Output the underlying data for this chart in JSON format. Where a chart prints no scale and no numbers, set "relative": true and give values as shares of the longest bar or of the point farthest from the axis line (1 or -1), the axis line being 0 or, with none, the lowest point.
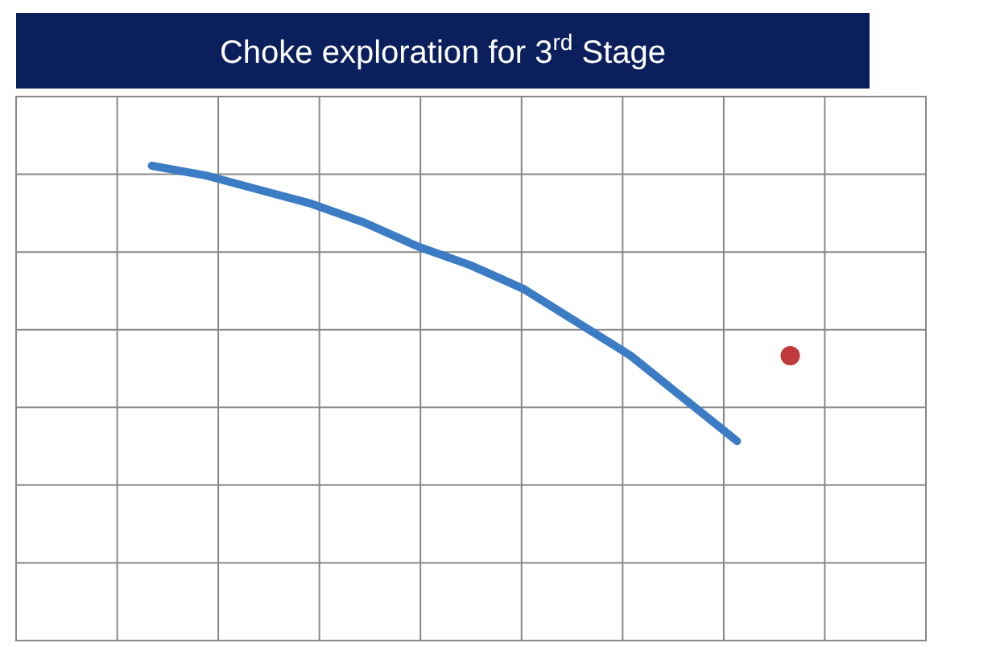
{
  "chart_data": {
    "type": "line",
    "title": "Choke exploration for 3$^{rd}$ Stage",
    "relative": true,
    "grid": true,
    "categories": [
      null,
      null,
      null,
      null,
      null,
      null,
      null,
      null,
      null,
      null,
      null,
      null,
      null
    ],
    "series": [
      {
        "color": "#3b7cc4",
        "marker": "none",
        "line_style": "solid",
        "values": [
          1,
          0.98,
          0.95,
          0.92,
          0.88,
          0.83,
          0.79,
          0.74,
          0.67,
          0.6,
          0.51,
          0.42,
          null
        ]
      },
      {
        "color": "#c0393b",
        "marker": "circle",
        "values": [
          null,
          null,
          null,
          null,
          null,
          null,
          null,
          null,
          null,
          null,
          null,
          null,
          0.6
        ]
      }
    ]
  }
}
